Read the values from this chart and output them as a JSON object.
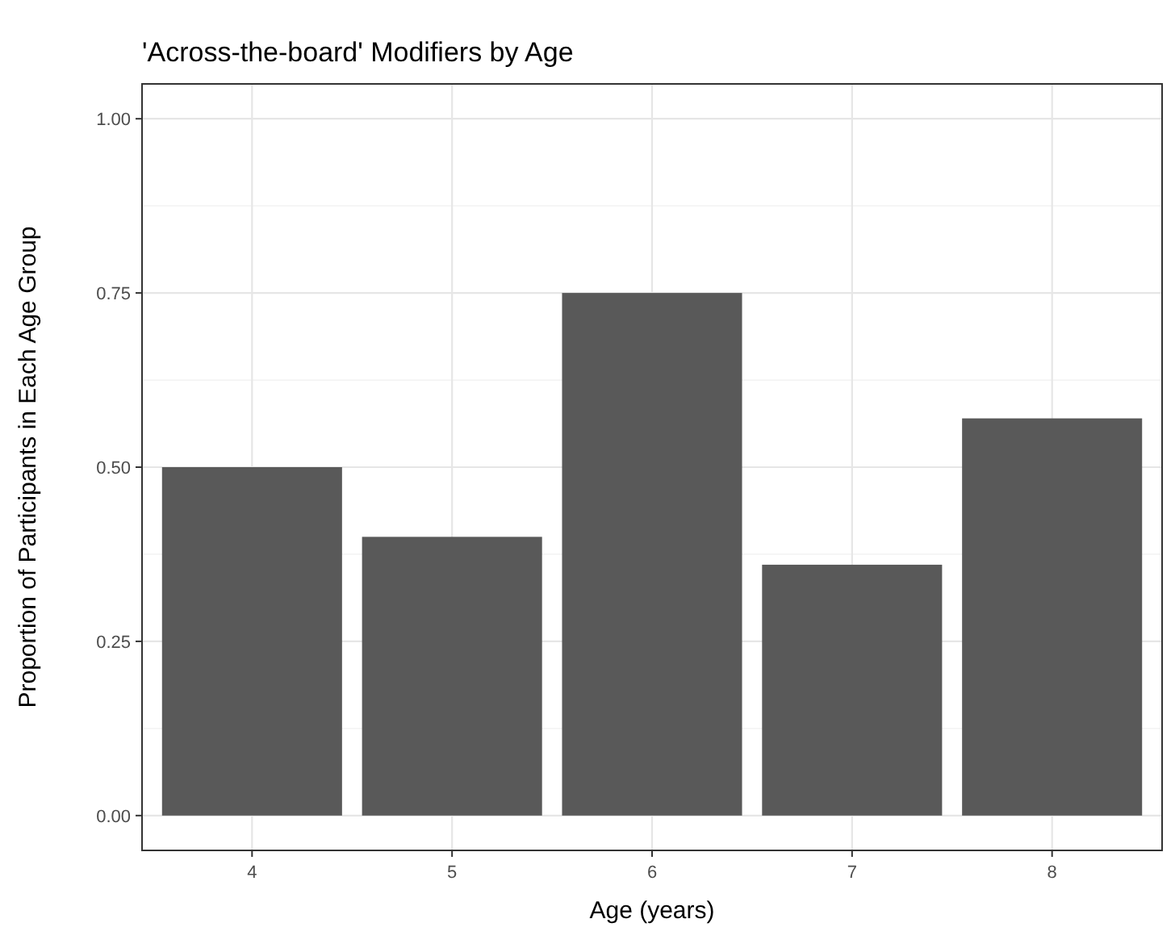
{
  "chart_data": {
    "type": "bar",
    "title": "'Across-the-board' Modifiers by Age",
    "xlabel": "Age (years)",
    "ylabel": "Proportion of Participants in Each Age Group",
    "categories": [
      "4",
      "5",
      "6",
      "7",
      "8"
    ],
    "values": [
      0.5,
      0.4,
      0.75,
      0.36,
      0.57
    ],
    "color": "#595959",
    "ylim": [
      -0.05,
      1.05
    ],
    "yticks": [
      {
        "value": 0,
        "label": "0.00"
      },
      {
        "value": 0.25,
        "label": "0.25"
      },
      {
        "value": 0.5,
        "label": "0.50"
      },
      {
        "value": 0.75,
        "label": "0.75"
      },
      {
        "value": 1,
        "label": "1.00"
      }
    ],
    "grid": true
  }
}
